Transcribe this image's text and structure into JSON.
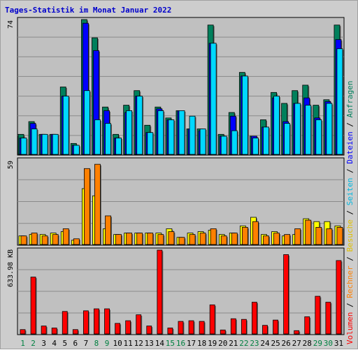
{
  "title": "Tages-Statistik im Monat Januar 2022",
  "colors": {
    "anfragen": "#00805c",
    "dateien": "#0000ff",
    "seiten": "#00d8ff",
    "besuche": "#ffff00",
    "rechner": "#ff8000",
    "volumen": "#ff0000",
    "weekend_label": "#008040",
    "day_label": "#000000"
  },
  "legend_right": {
    "top": [
      "Anfragen",
      "Dateien",
      "Seiten"
    ],
    "bottom": [
      "Besuche",
      "Rechner",
      "Volumen"
    ],
    "separator": " / "
  },
  "chart_data": [
    {
      "type": "bar",
      "title": "",
      "ymax_label": "74",
      "ylim": [
        0,
        74
      ],
      "categories": [
        "1",
        "2",
        "3",
        "4",
        "5",
        "6",
        "7",
        "8",
        "9",
        "10",
        "11",
        "12",
        "13",
        "14",
        "15",
        "16",
        "17",
        "18",
        "19",
        "20",
        "21",
        "22",
        "23",
        "24",
        "25",
        "26",
        "27",
        "28",
        "29",
        "30",
        "31"
      ],
      "series": [
        {
          "name": "Anfragen",
          "values": [
            11,
            18,
            11,
            11,
            37,
            6,
            74,
            64,
            26,
            11,
            27,
            35,
            16,
            26,
            20,
            24,
            14,
            14,
            71,
            11,
            23,
            45,
            10,
            19,
            34,
            28,
            35,
            38,
            27,
            30,
            71
          ]
        },
        {
          "name": "Dateien",
          "values": [
            9,
            17,
            11,
            11,
            32,
            5,
            72,
            57,
            24,
            9,
            23,
            32,
            12,
            25,
            19,
            24,
            14,
            13,
            61,
            10,
            21,
            43,
            10,
            15,
            31,
            18,
            28,
            31,
            20,
            29,
            63
          ]
        },
        {
          "name": "Seiten",
          "values": [
            9,
            14,
            11,
            11,
            32,
            5,
            35,
            19,
            17,
            9,
            24,
            32,
            12,
            24,
            19,
            24,
            21,
            14,
            61,
            10,
            13,
            43,
            9,
            15,
            32,
            17,
            28,
            27,
            19,
            28,
            58
          ]
        }
      ]
    },
    {
      "type": "bar",
      "title": "",
      "ymax_label": "59",
      "ylim": [
        0,
        59
      ],
      "categories": [
        "1",
        "2",
        "3",
        "4",
        "5",
        "6",
        "7",
        "8",
        "9",
        "10",
        "11",
        "12",
        "13",
        "14",
        "15",
        "16",
        "17",
        "18",
        "19",
        "20",
        "21",
        "22",
        "23",
        "24",
        "25",
        "26",
        "27",
        "28",
        "29",
        "30",
        "31"
      ],
      "series": [
        {
          "name": "Besuche",
          "values": [
            6,
            7,
            7,
            8,
            9,
            3,
            39,
            34,
            11,
            7,
            8,
            8,
            8,
            8,
            11,
            5,
            8,
            9,
            10,
            7,
            8,
            13,
            19,
            7,
            9,
            6,
            7,
            18,
            16,
            16,
            13
          ]
        },
        {
          "name": "Rechner",
          "values": [
            6,
            8,
            6,
            7,
            11,
            4,
            53,
            56,
            20,
            7,
            8,
            8,
            8,
            7,
            9,
            5,
            7,
            8,
            11,
            6,
            8,
            12,
            16,
            6,
            8,
            7,
            11,
            17,
            12,
            11,
            12
          ]
        }
      ]
    },
    {
      "type": "bar",
      "title": "",
      "ymax_label": "633.98 KB",
      "ylim": [
        0,
        633.98
      ],
      "categories": [
        "1",
        "2",
        "3",
        "4",
        "5",
        "6",
        "7",
        "8",
        "9",
        "10",
        "11",
        "12",
        "13",
        "14",
        "15",
        "16",
        "17",
        "18",
        "19",
        "20",
        "21",
        "22",
        "23",
        "24",
        "25",
        "26",
        "27",
        "28",
        "29",
        "30",
        "31"
      ],
      "series": [
        {
          "name": "Volumen",
          "values": [
            33,
            430,
            60,
            45,
            170,
            33,
            175,
            190,
            190,
            80,
            100,
            145,
            60,
            650,
            45,
            95,
            100,
            95,
            220,
            30,
            115,
            110,
            240,
            65,
            105,
            600,
            25,
            130,
            285,
            240,
            555
          ]
        }
      ]
    }
  ],
  "x_axis": {
    "labels": [
      "1",
      "2",
      "3",
      "4",
      "5",
      "6",
      "7",
      "8",
      "9",
      "10",
      "11",
      "12",
      "13",
      "14",
      "15",
      "16",
      "17",
      "18",
      "19",
      "20",
      "21",
      "22",
      "23",
      "24",
      "25",
      "26",
      "27",
      "28",
      "29",
      "30",
      "31"
    ],
    "weekend_days": [
      1,
      2,
      8,
      9,
      15,
      16,
      22,
      23,
      29,
      30
    ]
  }
}
